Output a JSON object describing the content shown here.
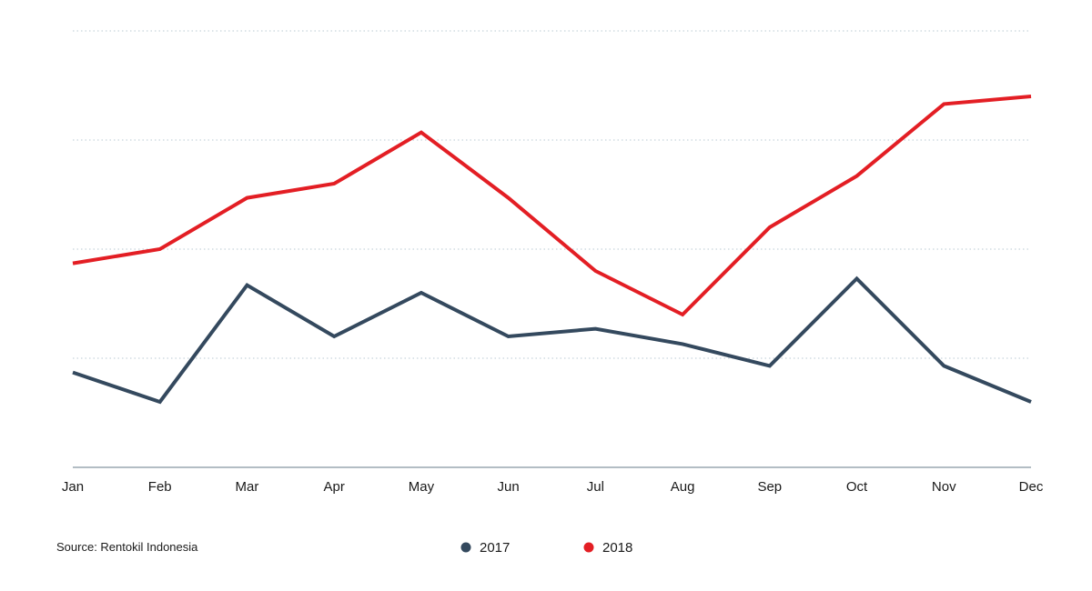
{
  "source": "Source: Rentokil Indonesia",
  "chart_data": {
    "type": "line",
    "title": "",
    "xlabel": "",
    "ylabel": "",
    "categories": [
      "Jan",
      "Feb",
      "Mar",
      "Apr",
      "May",
      "Jun",
      "Jul",
      "Aug",
      "Sep",
      "Oct",
      "Nov",
      "Dec"
    ],
    "ylim": [
      0,
      4
    ],
    "y_ticks_labeled": false,
    "grid": "horizontal dotted",
    "legend_position": "bottom-center",
    "series": [
      {
        "name": "2017",
        "color": "#34495e",
        "values": [
          0.87,
          0.6,
          1.67,
          1.2,
          1.6,
          1.2,
          1.27,
          1.13,
          0.93,
          1.73,
          0.93,
          0.6
        ]
      },
      {
        "name": "2018",
        "color": "#e31e24",
        "values": [
          1.87,
          2.0,
          2.47,
          2.6,
          3.07,
          2.47,
          1.8,
          1.4,
          2.2,
          2.67,
          3.33,
          3.4
        ]
      }
    ]
  }
}
